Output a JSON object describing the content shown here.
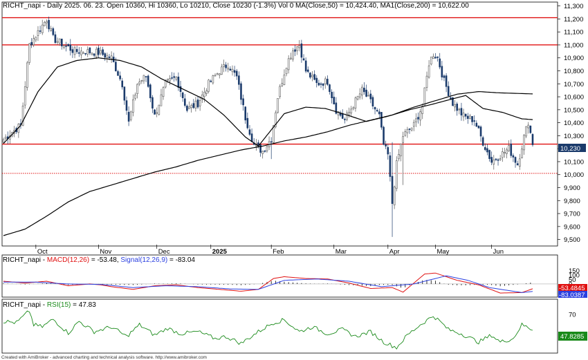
{
  "header": {
    "symbol": "RICHT_napi",
    "main_info": "Daily 2025. 06. 23. Open 10360, Hi 10360, Lo 10210, Close 10230 (-1.3%) Vol 0 MA(Close,50) = 10,424.40, MA1(Close,200) = 10,622.00",
    "macd_name": "MACD(12,26)",
    "macd_value": "= -53.48,",
    "signal_name": "Signal(12,26,9)",
    "signal_value": "= -83.04",
    "rsi_name": "RSI(15)",
    "rsi_value": "= 47.83"
  },
  "footer": "Created with AmiBroker - advanced charting and technical analysis software. http://www.amibroker.com",
  "colors": {
    "candle": "#1a3a6b",
    "ma": "#000000",
    "hline": "#e01010",
    "macd": "#e01010",
    "signal": "#2a3fe0",
    "rsi": "#1a8a1a",
    "price_box": "#1a3a6b"
  },
  "price_axis": {
    "ticks": [
      "11,300",
      "11,200",
      "11,100",
      "11,000",
      "10,900",
      "10,800",
      "10,700",
      "10,600",
      "10,500",
      "10,400",
      "10,300",
      "10,200",
      "10,100",
      "10,000",
      "9,900",
      "9,800",
      "9,700",
      "9,600",
      "9,500"
    ],
    "last_price_label": "10,230"
  },
  "macd_axis": {
    "ticks": [
      "150",
      "100",
      "50",
      "0"
    ],
    "macd_label": "-53.4845",
    "signal_label": "-83.0387"
  },
  "rsi_axis": {
    "ticks": [
      "70"
    ],
    "rsi_label": "47.8285"
  },
  "x_axis": {
    "months": [
      "Oct",
      "Nov",
      "Dec",
      "2025",
      "Feb",
      "Mar",
      "Apr",
      "May",
      "Jun"
    ]
  },
  "chart_data": {
    "type": "candlestick",
    "frequency": "daily",
    "ylim": [
      9450,
      11330
    ],
    "horizontal_levels": [
      {
        "value": 11210,
        "style": "solid"
      },
      {
        "value": 11000,
        "style": "solid"
      },
      {
        "value": 10235,
        "style": "solid"
      },
      {
        "value": 10010,
        "style": "dotted"
      }
    ],
    "moving_averages": [
      {
        "label": "MA(Close,50)",
        "last": 10424.4,
        "points": [
          [
            0,
            10240
          ],
          [
            8,
            10380
          ],
          [
            16,
            10640
          ],
          [
            25,
            10830
          ],
          [
            34,
            10880
          ],
          [
            44,
            10900
          ],
          [
            54,
            10880
          ],
          [
            64,
            10830
          ],
          [
            73,
            10740
          ],
          [
            83,
            10660
          ],
          [
            93,
            10580
          ],
          [
            102,
            10460
          ],
          [
            112,
            10290
          ],
          [
            118,
            10220
          ],
          [
            130,
            10470
          ],
          [
            140,
            10520
          ],
          [
            149,
            10510
          ],
          [
            159,
            10460
          ],
          [
            168,
            10410
          ],
          [
            178,
            10450
          ],
          [
            188,
            10500
          ],
          [
            198,
            10540
          ],
          [
            207,
            10580
          ],
          [
            214,
            10610
          ],
          [
            222,
            10510
          ],
          [
            231,
            10480
          ],
          [
            240,
            10430
          ],
          [
            245,
            10424
          ]
        ]
      },
      {
        "label": "MA1(Close,200)",
        "last": 10622.0,
        "points": [
          [
            0,
            9530
          ],
          [
            10,
            9580
          ],
          [
            20,
            9680
          ],
          [
            30,
            9790
          ],
          [
            40,
            9870
          ],
          [
            50,
            9920
          ],
          [
            60,
            9970
          ],
          [
            70,
            10020
          ],
          [
            80,
            10060
          ],
          [
            90,
            10110
          ],
          [
            100,
            10150
          ],
          [
            110,
            10190
          ],
          [
            120,
            10220
          ],
          [
            130,
            10260
          ],
          [
            140,
            10290
          ],
          [
            150,
            10330
          ],
          [
            160,
            10380
          ],
          [
            170,
            10420
          ],
          [
            180,
            10460
          ],
          [
            190,
            10520
          ],
          [
            200,
            10570
          ],
          [
            210,
            10620
          ],
          [
            220,
            10640
          ],
          [
            230,
            10630
          ],
          [
            245,
            10622
          ]
        ]
      }
    ],
    "macd": {
      "min": -130,
      "max": 190,
      "zero_line": 0,
      "last_macd": -53.48,
      "last_signal": -83.04,
      "macd_points": [
        [
          0,
          30
        ],
        [
          10,
          10
        ],
        [
          20,
          30
        ],
        [
          30,
          -20
        ],
        [
          40,
          0
        ],
        [
          45,
          -10
        ],
        [
          50,
          -30
        ],
        [
          60,
          -60
        ],
        [
          70,
          -20
        ],
        [
          80,
          -10
        ],
        [
          90,
          -40
        ],
        [
          100,
          -60
        ],
        [
          110,
          -80
        ],
        [
          118,
          -60
        ],
        [
          125,
          60
        ],
        [
          130,
          80
        ],
        [
          140,
          60
        ],
        [
          150,
          55
        ],
        [
          160,
          10
        ],
        [
          170,
          -50
        ],
        [
          180,
          -40
        ],
        [
          185,
          -90
        ],
        [
          195,
          110
        ],
        [
          200,
          120
        ],
        [
          210,
          40
        ],
        [
          220,
          -10
        ],
        [
          230,
          -100
        ],
        [
          240,
          -95
        ],
        [
          245,
          -53
        ]
      ],
      "signal_points": [
        [
          0,
          20
        ],
        [
          15,
          20
        ],
        [
          30,
          0
        ],
        [
          45,
          -5
        ],
        [
          60,
          -40
        ],
        [
          75,
          -20
        ],
        [
          90,
          -30
        ],
        [
          105,
          -55
        ],
        [
          118,
          -60
        ],
        [
          130,
          40
        ],
        [
          145,
          55
        ],
        [
          160,
          30
        ],
        [
          175,
          -30
        ],
        [
          190,
          0
        ],
        [
          205,
          90
        ],
        [
          215,
          40
        ],
        [
          225,
          -40
        ],
        [
          240,
          -95
        ],
        [
          245,
          -83
        ]
      ]
    },
    "rsi": {
      "min": 15,
      "max": 85,
      "last": 47.83,
      "points": [
        [
          0,
          60
        ],
        [
          6,
          58
        ],
        [
          12,
          75
        ],
        [
          14,
          55
        ],
        [
          18,
          52
        ],
        [
          23,
          63
        ],
        [
          30,
          43
        ],
        [
          35,
          60
        ],
        [
          42,
          45
        ],
        [
          50,
          52
        ],
        [
          57,
          38
        ],
        [
          63,
          55
        ],
        [
          70,
          40
        ],
        [
          76,
          50
        ],
        [
          82,
          42
        ],
        [
          90,
          45
        ],
        [
          98,
          35
        ],
        [
          103,
          38
        ],
        [
          110,
          28
        ],
        [
          118,
          45
        ],
        [
          125,
          58
        ],
        [
          130,
          62
        ],
        [
          137,
          45
        ],
        [
          143,
          52
        ],
        [
          150,
          42
        ],
        [
          157,
          48
        ],
        [
          163,
          38
        ],
        [
          170,
          45
        ],
        [
          176,
          30
        ],
        [
          182,
          22
        ],
        [
          187,
          40
        ],
        [
          193,
          55
        ],
        [
          199,
          68
        ],
        [
          202,
          60
        ],
        [
          206,
          48
        ],
        [
          212,
          42
        ],
        [
          220,
          30
        ],
        [
          226,
          40
        ],
        [
          230,
          30
        ],
        [
          236,
          35
        ],
        [
          240,
          55
        ],
        [
          245,
          48
        ]
      ]
    },
    "last_close": 10230
  }
}
